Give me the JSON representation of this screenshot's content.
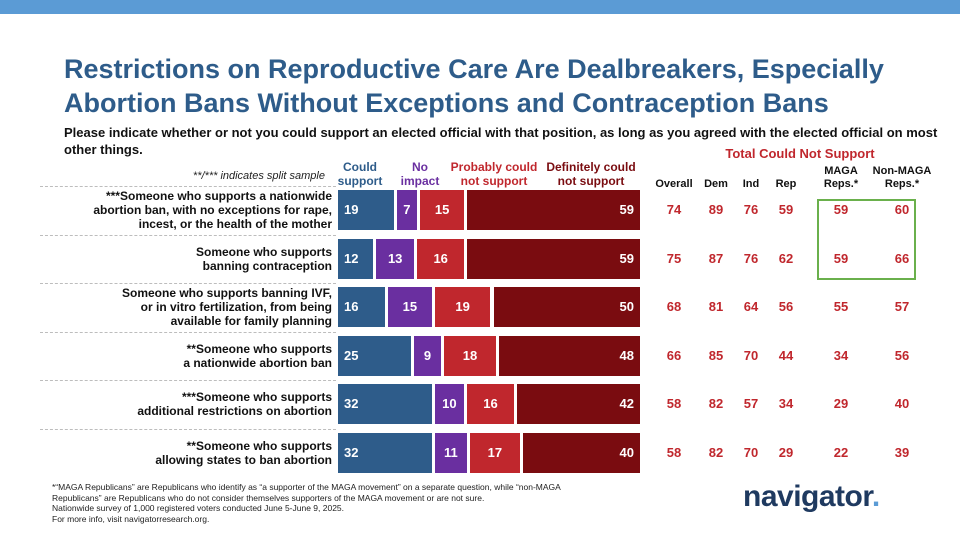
{
  "title": "Restrictions on Reproductive Care Are Dealbreakers, Especially Abortion Bans Without Exceptions and Contraception Bans",
  "subtitle": "Please indicate whether or not you could support an elected official with that position, as long as you agreed with the elected official on most other things.",
  "split_note": "**/*** indicates split sample",
  "colors": {
    "could_support": "#2e5c8a",
    "no_impact": "#6a2fa0",
    "probably_not": "#c0272d",
    "definitely_not": "#7a0c10",
    "title": "#2e5c8a",
    "accent_red": "#c0272d",
    "highlight_green": "#6ab04c"
  },
  "chart_data": {
    "type": "bar",
    "stacked": true,
    "orientation": "horizontal",
    "series_labels": [
      "Could support",
      "No impact",
      "Probably could not support",
      "Definitely could not support"
    ],
    "categories": [
      "***Someone who supports a nationwide abortion ban, with no exceptions for rape, incest, or the health of the mother",
      "Someone who supports banning contraception",
      "Someone who supports banning IVF, or in vitro fertilization, from being available for family planning",
      "**Someone who supports a nationwide abortion ban",
      "***Someone who supports additional restrictions on abortion",
      "**Someone who supports allowing states to ban abortion"
    ],
    "series": [
      {
        "name": "Could support",
        "values": [
          19,
          12,
          16,
          25,
          32,
          32
        ]
      },
      {
        "name": "No impact",
        "values": [
          7,
          13,
          15,
          9,
          10,
          11
        ]
      },
      {
        "name": "Probably could not support",
        "values": [
          15,
          16,
          19,
          18,
          16,
          17
        ]
      },
      {
        "name": "Definitely could not support",
        "values": [
          59,
          59,
          50,
          48,
          42,
          40
        ]
      }
    ],
    "table_title": "Total Could Not Support",
    "table_columns": [
      "Overall",
      "Dem",
      "Ind",
      "Rep",
      "MAGA Reps.*",
      "Non-MAGA Reps.*"
    ],
    "table_rows": [
      [
        74,
        89,
        76,
        59,
        59,
        60
      ],
      [
        75,
        87,
        76,
        62,
        59,
        66
      ],
      [
        68,
        81,
        64,
        56,
        55,
        57
      ],
      [
        66,
        85,
        70,
        44,
        34,
        56
      ],
      [
        58,
        82,
        57,
        34,
        29,
        40
      ],
      [
        58,
        82,
        70,
        29,
        22,
        39
      ]
    ]
  },
  "col_heads": {
    "could_a": "Could",
    "could_b": "support",
    "noimp_a": "No",
    "noimp_b": "impact",
    "prob_a": "Probably could",
    "prob_b": "not support",
    "def_a": "Definitely could",
    "def_b": "not support"
  },
  "group_heads": {
    "overall": "Overall",
    "dem": "Dem",
    "ind": "Ind",
    "rep": "Rep",
    "maga_a": "MAGA",
    "maga_b": "Reps.*",
    "nonmaga_a": "Non-MAGA",
    "nonmaga_b": "Reps.*"
  },
  "row_labels": [
    [
      "***Someone who supports a nationwide",
      "abortion ban, with no exceptions for rape,",
      "incest, or the health of the mother"
    ],
    [
      "Someone who supports",
      "banning contraception"
    ],
    [
      "Someone who supports banning IVF,",
      "or in vitro fertilization, from being",
      "available for family planning"
    ],
    [
      "**Someone who supports",
      "a nationwide abortion ban"
    ],
    [
      "***Someone who supports",
      "additional restrictions on abortion"
    ],
    [
      "**Someone who supports",
      "allowing states to ban abortion"
    ]
  ],
  "footnote": {
    "line1": "*“MAGA Republicans” are Republicans who identify as “a supporter of the MAGA movement” on a separate question, while “non-MAGA",
    "line2": "Republicans” are Republicans who do not consider themselves supporters of the MAGA movement or are not sure.",
    "line3": "Nationwide survey of 1,000 registered voters conducted June 5-June 9, 2025.",
    "line4": "For more info, visit navigatorresearch.org."
  },
  "logo": {
    "text": "navigator",
    "dot": "."
  }
}
